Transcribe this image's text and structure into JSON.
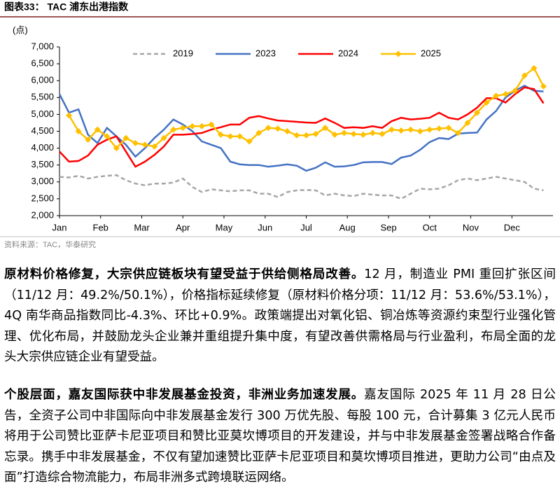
{
  "figure_caption": "图表33： TAC 浦东出港指数",
  "chart_data": {
    "type": "line",
    "y_unit": "(点)",
    "x": [
      0,
      1,
      2,
      3,
      4,
      5,
      6,
      7,
      8,
      9,
      10,
      11,
      12,
      13,
      14,
      15,
      16,
      17,
      18,
      19,
      20,
      21,
      22,
      23,
      24,
      25,
      26,
      27,
      28,
      29,
      30,
      31,
      32,
      33,
      34,
      35,
      36,
      37,
      38,
      39,
      40,
      41,
      42,
      43,
      44,
      45,
      46,
      47,
      48,
      49,
      50,
      51
    ],
    "xlim": [
      0,
      52
    ],
    "xticks": [
      {
        "value": 0,
        "label": "Jan"
      },
      {
        "value": 4.33,
        "label": "Feb"
      },
      {
        "value": 8.67,
        "label": "Mar"
      },
      {
        "value": 13,
        "label": "Apr"
      },
      {
        "value": 17.33,
        "label": "May"
      },
      {
        "value": 21.67,
        "label": "Jun"
      },
      {
        "value": 26,
        "label": "Jul"
      },
      {
        "value": 30.33,
        "label": "Aug"
      },
      {
        "value": 34.67,
        "label": "Sep"
      },
      {
        "value": 39,
        "label": "Oct"
      },
      {
        "value": 43.33,
        "label": "Nov"
      },
      {
        "value": 47.67,
        "label": "Dec"
      }
    ],
    "ylim": [
      2000,
      7000
    ],
    "yticks": [
      {
        "value": 2000,
        "label": "2,000"
      },
      {
        "value": 2500,
        "label": "2,500"
      },
      {
        "value": 3000,
        "label": "3,000"
      },
      {
        "value": 3500,
        "label": "3,500"
      },
      {
        "value": 4000,
        "label": "4,000"
      },
      {
        "value": 4500,
        "label": "4,500"
      },
      {
        "value": 5000,
        "label": "5,000"
      },
      {
        "value": 5500,
        "label": "5,500"
      },
      {
        "value": 6000,
        "label": "6,000"
      },
      {
        "value": 6500,
        "label": "6,500"
      },
      {
        "value": 7000,
        "label": "7,000"
      }
    ],
    "grid": false,
    "legend": "top",
    "series": [
      {
        "name": "2019",
        "color": "#a6a6a6",
        "dash": true,
        "values": [
          3150,
          3130,
          3180,
          3100,
          3150,
          3180,
          3200,
          3050,
          2950,
          2900,
          2950,
          2950,
          2980,
          3100,
          2850,
          2700,
          2780,
          2750,
          2720,
          2750,
          2750,
          2650,
          2650,
          2550,
          2700,
          2750,
          2760,
          2750,
          2600,
          2650,
          2600,
          2580,
          2650,
          2620,
          2600,
          2600,
          2500,
          2650,
          2800,
          2780,
          2800,
          2900,
          3050,
          3100,
          3050,
          3100,
          3150,
          3100,
          3050,
          3000,
          2800,
          2750
        ]
      },
      {
        "name": "2023",
        "color": "#4472c4",
        "values": [
          5600,
          5050,
          5150,
          4400,
          4150,
          4600,
          4350,
          4100,
          3750,
          4000,
          4300,
          4550,
          4850,
          4700,
          4500,
          4200,
          4100,
          4000,
          3600,
          3520,
          3500,
          3500,
          3450,
          3480,
          3520,
          3480,
          3330,
          3420,
          3580,
          3450,
          3460,
          3500,
          3580,
          3590,
          3590,
          3530,
          3720,
          3780,
          3950,
          4180,
          4300,
          4270,
          4430,
          4450,
          4460,
          4850,
          5100,
          5500,
          5700,
          5850,
          5700,
          5680
        ]
      },
      {
        "name": "2024",
        "color": "#ff0000",
        "values": [
          3900,
          3600,
          3620,
          3780,
          4100,
          4250,
          4350,
          3900,
          3450,
          3600,
          3800,
          4050,
          4400,
          4400,
          4420,
          4450,
          4550,
          4620,
          4700,
          4700,
          4900,
          4950,
          4880,
          4820,
          4800,
          4780,
          4760,
          4750,
          4880,
          4750,
          4600,
          4620,
          4600,
          4650,
          4600,
          4800,
          4900,
          4850,
          4870,
          4900,
          5050,
          4900,
          4850,
          5000,
          5200,
          5480,
          5480,
          5350,
          5600,
          5800,
          5750,
          5330
        ]
      },
      {
        "name": "2025",
        "color": "#ffc000",
        "marker": true,
        "values": [
          null,
          4970,
          4500,
          4250,
          4550,
          4350,
          4000,
          4300,
          4150,
          4100,
          4050,
          4300,
          4550,
          4600,
          4650,
          4650,
          4700,
          4400,
          4350,
          4350,
          4200,
          4450,
          4600,
          4580,
          4500,
          4380,
          4380,
          4420,
          4600,
          4400,
          4450,
          4420,
          4400,
          4450,
          4420,
          4550,
          4520,
          4550,
          4500,
          4550,
          4580,
          4600,
          4450,
          4750,
          5050,
          5350,
          5550,
          5600,
          5700,
          6150,
          6370,
          5830
        ]
      }
    ]
  },
  "source": "资料来源：TAC，华泰研究",
  "paragraphs": [
    {
      "bold": "原材料价格修复，大宗供应链板块有望受益于供给侧格局改善。",
      "text": "12 月，制造业 PMI 重回扩张区间（11/12 月：49.2%/50.1%），价格指标延续修复（原材料价格分项：11/12 月：53.6%/53.1%），4Q 南华商品指数同比-4.3%、环比+0.9%。政策端提出对氧化铝、铜冶炼等资源约束型行业强化管理、优化布局，并鼓励龙头企业兼并重组提升集中度，有望改善供需格局与行业盈利，布局全面的龙头大宗供应链企业有望受益。"
    },
    {
      "bold": "个股层面，嘉友国际获中非发展基金投资，非洲业务加速发展。",
      "text": "嘉友国际 2025 年 11 月 28 日公告，全资子公司中非国际向中非发展基金发行 300 万优先股、每股 100 元，合计募集 3 亿元人民币将用于公司赞比亚萨卡尼亚项目和赞比亚莫坎博项目的开发建设，并与中非发展基金签署战略合作备忘录。携手中非发展基金，不仅有望加速赞比亚萨卡尼亚项目和莫坎博项目推进，更助力公司“由点及面”打造综合物流能力，布局非洲多式跨境联运网络。"
    }
  ]
}
